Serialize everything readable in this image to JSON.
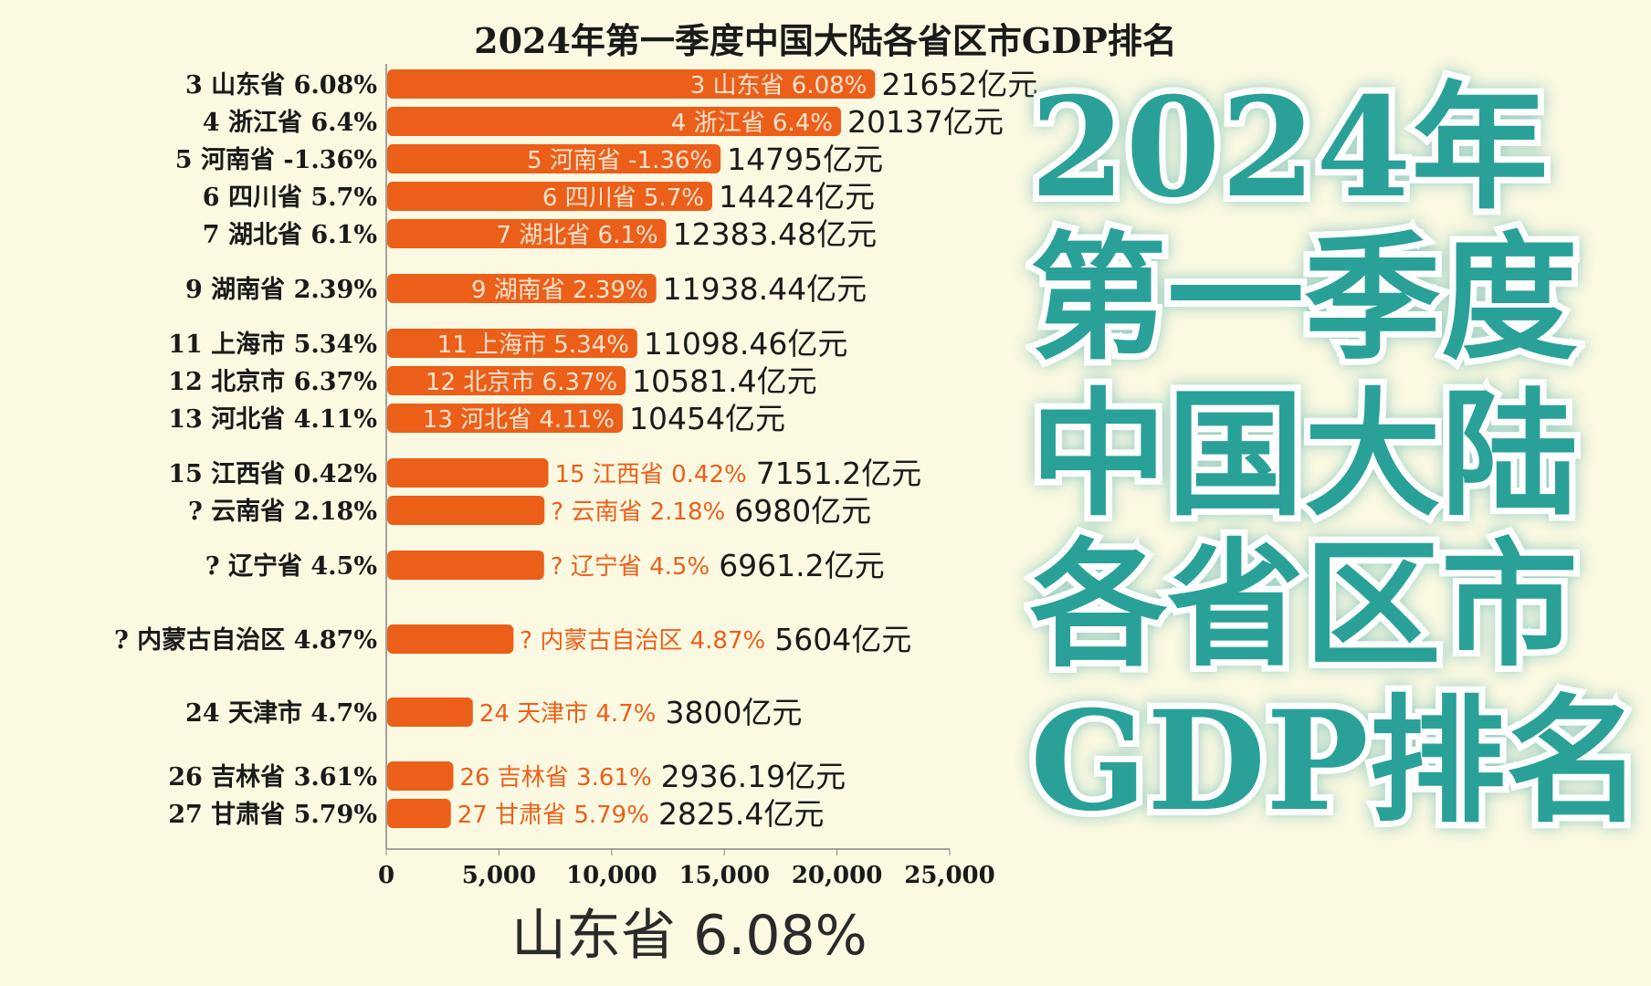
{
  "chart_data": {
    "type": "bar",
    "orientation": "horizontal",
    "title": "2024年第一季度中国大陆各省区市GDP排名",
    "unit": "亿元",
    "xlim": [
      0,
      25000
    ],
    "xticks": [
      "0",
      "5,000",
      "10,000",
      "15,000",
      "20,000",
      "25,000"
    ],
    "xtick_values": [
      0,
      5000,
      10000,
      15000,
      20000,
      25000
    ],
    "bar_color": "#ec5f19",
    "rows": [
      {
        "rank": "3",
        "name": "山东省",
        "growth": "6.08%",
        "value": 21652,
        "value_label": "21652亿元"
      },
      {
        "rank": "4",
        "name": "浙江省",
        "growth": "6.4%",
        "value": 20137,
        "value_label": "20137亿元"
      },
      {
        "rank": "5",
        "name": "河南省",
        "growth": "-1.36%",
        "value": 14795,
        "value_label": "14795亿元"
      },
      {
        "rank": "6",
        "name": "四川省",
        "growth": "5.7%",
        "value": 14424,
        "value_label": "14424亿元"
      },
      {
        "rank": "7",
        "name": "湖北省",
        "growth": "6.1%",
        "value": 12383.48,
        "value_label": "12383.48亿元"
      },
      {
        "rank": "9",
        "name": "湖南省",
        "growth": "2.39%",
        "value": 11938.44,
        "value_label": "11938.44亿元"
      },
      {
        "rank": "11",
        "name": "上海市",
        "growth": "5.34%",
        "value": 11098.46,
        "value_label": "11098.46亿元"
      },
      {
        "rank": "12",
        "name": "北京市",
        "growth": "6.37%",
        "value": 10581.4,
        "value_label": "10581.4亿元"
      },
      {
        "rank": "13",
        "name": "河北省",
        "growth": "4.11%",
        "value": 10454,
        "value_label": "10454亿元"
      },
      {
        "rank": "15",
        "name": "江西省",
        "growth": "0.42%",
        "value": 7151.2,
        "value_label": "7151.2亿元"
      },
      {
        "rank": "?",
        "name": "云南省",
        "growth": "2.18%",
        "value": 6980,
        "value_label": "6980亿元"
      },
      {
        "rank": "?",
        "name": "辽宁省",
        "growth": "4.5%",
        "value": 6961.2,
        "value_label": "6961.2亿元"
      },
      {
        "rank": "?",
        "name": "内蒙古自治区",
        "growth": "4.87%",
        "value": 5604,
        "value_label": "5604亿元"
      },
      {
        "rank": "24",
        "name": "天津市",
        "growth": "4.7%",
        "value": 3800,
        "value_label": "3800亿元"
      },
      {
        "rank": "26",
        "name": "吉林省",
        "growth": "3.61%",
        "value": 2936.19,
        "value_label": "2936.19亿元"
      },
      {
        "rank": "27",
        "name": "甘肃省",
        "growth": "5.79%",
        "value": 2825.4,
        "value_label": "2825.4亿元"
      }
    ]
  },
  "overlay": {
    "line1": "2024年第一季度",
    "line2": "中国大陆各省区市",
    "line3": "GDP排名",
    "ghost": "山东省 6.08%",
    "color": "#2aa198"
  }
}
